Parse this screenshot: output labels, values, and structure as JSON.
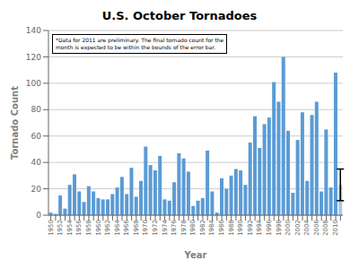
{
  "chart_data": {
    "type": "bar",
    "title": "U.S. October Tornadoes",
    "xlabel": "Year",
    "ylabel": "Tornado Count",
    "annotation": "*Data for 2011 are preliminary. The final tornado count for the\nmonth is expected to be within the bounds of the error bar.",
    "categories": [
      "1950",
      null,
      "1952",
      null,
      "1954",
      null,
      "1956",
      null,
      "1958",
      null,
      "1960",
      null,
      "1962",
      null,
      "1964",
      null,
      "1966",
      null,
      "1968",
      null,
      "1970",
      null,
      "1972",
      null,
      "1974",
      null,
      "1976",
      null,
      "1978",
      null,
      "1980",
      null,
      "1982",
      null,
      "1984",
      null,
      "1986",
      null,
      "1988",
      null,
      "1990",
      null,
      "1992",
      null,
      "1994",
      null,
      "1996",
      null,
      "1998",
      null,
      "2000",
      null,
      "2002",
      null,
      "2004",
      null,
      "2006",
      null,
      "2008",
      null,
      "2010",
      null
    ],
    "values": [
      2,
      1,
      15,
      5,
      23,
      31,
      18,
      10,
      22,
      18,
      13,
      12,
      12,
      16,
      21,
      29,
      16,
      36,
      14,
      26,
      52,
      38,
      34,
      45,
      12,
      11,
      25,
      47,
      43,
      33,
      7,
      11,
      13,
      49,
      18,
      2,
      28,
      20,
      30,
      35,
      34,
      23,
      55,
      75,
      51,
      69,
      74,
      101,
      86,
      120,
      64,
      17,
      57,
      78,
      26,
      76,
      86,
      18,
      65,
      21,
      108,
      23
    ],
    "colors": [
      "#5b9bd5",
      "#5b9bd5",
      "#5b9bd5",
      "#5b9bd5",
      "#5b9bd5",
      "#5b9bd5",
      "#5b9bd5",
      "#5b9bd5",
      "#5b9bd5",
      "#5b9bd5",
      "#5b9bd5",
      "#5b9bd5",
      "#5b9bd5",
      "#5b9bd5",
      "#5b9bd5",
      "#5b9bd5",
      "#5b9bd5",
      "#5b9bd5",
      "#5b9bd5",
      "#5b9bd5",
      "#5b9bd5",
      "#5b9bd5",
      "#5b9bd5",
      "#5b9bd5",
      "#5b9bd5",
      "#5b9bd5",
      "#5b9bd5",
      "#5b9bd5",
      "#5b9bd5",
      "#5b9bd5",
      "#5b9bd5",
      "#5b9bd5",
      "#5b9bd5",
      "#5b9bd5",
      "#5b9bd5",
      "#5b9bd5",
      "#5b9bd5",
      "#5b9bd5",
      "#5b9bd5",
      "#5b9bd5",
      "#5b9bd5",
      "#5b9bd5",
      "#5b9bd5",
      "#5b9bd5",
      "#5b9bd5",
      "#5b9bd5",
      "#5b9bd5",
      "#5b9bd5",
      "#5b9bd5",
      "#5b9bd5",
      "#5b9bd5",
      "#5b9bd5",
      "#5b9bd5",
      "#5b9bd5",
      "#5b9bd5",
      "#5b9bd5",
      "#5b9bd5",
      "#5b9bd5",
      "#5b9bd5",
      "#5b9bd5",
      "#5b9bd5",
      "#a8c8e8"
    ],
    "errors": [
      null,
      null,
      null,
      null,
      null,
      null,
      null,
      null,
      null,
      null,
      null,
      null,
      null,
      null,
      null,
      null,
      null,
      null,
      null,
      null,
      null,
      null,
      null,
      null,
      null,
      null,
      null,
      null,
      null,
      null,
      null,
      null,
      null,
      null,
      null,
      null,
      null,
      null,
      null,
      null,
      null,
      null,
      null,
      null,
      null,
      null,
      null,
      null,
      null,
      null,
      null,
      null,
      null,
      null,
      null,
      null,
      null,
      null,
      null,
      null,
      null,
      12
    ],
    "ylim": [
      0,
      140
    ],
    "yticks": [
      0,
      20,
      40,
      60,
      80,
      100,
      120,
      140
    ],
    "grid": true
  }
}
